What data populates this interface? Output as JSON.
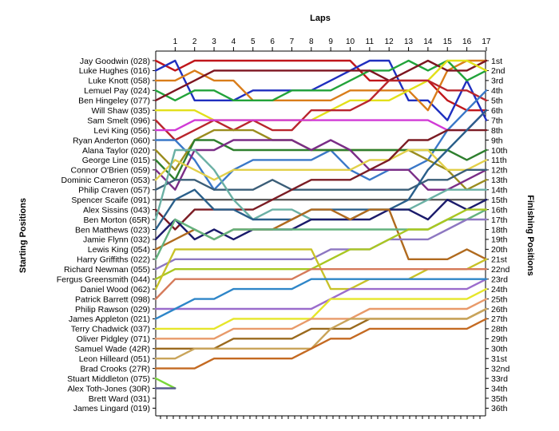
{
  "chart_data": {
    "type": "line",
    "title": "",
    "xlabel": "Laps",
    "ylabel_left": "Starting Positions",
    "ylabel_right": "Finishing Positions",
    "laps": [
      1,
      2,
      3,
      4,
      5,
      6,
      7,
      8,
      9,
      10,
      11,
      12,
      13,
      14,
      15,
      16,
      17
    ],
    "starting_grid": [
      "Jay Goodwin (028)",
      "Luke Hughes (016)",
      "Luke Knott (058)",
      "Lemuel Pay (024)",
      "Ben Hingeley (077)",
      "Will Shaw (035)",
      "Sam Smelt (096)",
      "Levi King (056)",
      "Ryan Anderton (060)",
      "Alana Taylor (020)",
      "George Line (015)",
      "Connor O'Brien (059)",
      "Dominic Cameron (053)",
      "Philip Craven (057)",
      "Spencer Scaife (091)",
      "Alex Sissins (043)",
      "Ben Morton (65R)",
      "Ben Matthews (023)",
      "Jamie Flynn (032)",
      "Lewis King (054)",
      "Harry Griffiths (022)",
      "Richard Newman (055)",
      "Fergus Greensmith (044)",
      "Daniel Wood (062)",
      "Patrick Barrett (098)",
      "Philip Rawson (029)",
      "James Appleton (021)",
      "Terry Chadwick (037)",
      "Oliver Pidgley (071)",
      "Samuel Wade (42R)",
      "Leon Hilleard (051)",
      "Brad Crooks (27R)",
      "Stuart Middleton (075)",
      "Alex Toth-Jones (30R)",
      "Brett Ward (031)",
      "James Lingard (019)"
    ],
    "finishing_positions": [
      "1st",
      "2nd",
      "3rd",
      "4th",
      "5th",
      "6th",
      "7th",
      "8th",
      "9th",
      "10th",
      "11th",
      "12th",
      "13th",
      "14th",
      "15th",
      "16th",
      "17th",
      "18th",
      "19th",
      "20th",
      "21st",
      "22nd",
      "23rd",
      "24th",
      "25th",
      "26th",
      "27th",
      "28th",
      "29th",
      "30th",
      "31st",
      "32nd",
      "33rd",
      "34th",
      "35th",
      "36th"
    ],
    "series": [
      {
        "color": "#c0161b",
        "start": 1,
        "positions": [
          2,
          1,
          1,
          1,
          1,
          1,
          1,
          1,
          1,
          1,
          3,
          3,
          3,
          3,
          5,
          6,
          6
        ]
      },
      {
        "color": "#1f2fbf",
        "start": 2,
        "positions": [
          1,
          5,
          5,
          5,
          4,
          4,
          4,
          4,
          3,
          2,
          1,
          1,
          5,
          5,
          7,
          3,
          7
        ]
      },
      {
        "color": "#d97d1a",
        "start": 3,
        "positions": [
          3,
          2,
          3,
          3,
          5,
          5,
          5,
          5,
          5,
          4,
          4,
          4,
          4,
          6,
          2,
          1,
          1
        ]
      },
      {
        "color": "#22a33a",
        "start": 4,
        "positions": [
          5,
          4,
          4,
          5,
          5,
          5,
          4,
          4,
          4,
          3,
          2,
          2,
          1,
          2,
          1,
          3,
          2
        ]
      },
      {
        "color": "#7d1520",
        "start": 5,
        "positions": [
          4,
          3,
          2,
          2,
          2,
          2,
          2,
          2,
          2,
          2,
          2,
          3,
          2,
          1,
          2,
          2,
          1
        ]
      },
      {
        "color": "#e2e01a",
        "start": 6,
        "positions": [
          6,
          6,
          7,
          7,
          7,
          7,
          7,
          7,
          6,
          5,
          5,
          5,
          4,
          3,
          1,
          1,
          2
        ]
      },
      {
        "color": "#b9252c",
        "start": 7,
        "positions": [
          9,
          8,
          7,
          8,
          7,
          8,
          8,
          6,
          6,
          6,
          5,
          3,
          3,
          3,
          4,
          4,
          5
        ]
      },
      {
        "color": "#d13ad6",
        "start": 8,
        "positions": [
          8,
          7,
          7,
          7,
          7,
          7,
          7,
          7,
          7,
          7,
          7,
          7,
          7,
          7,
          8,
          8,
          6
        ]
      },
      {
        "color": "#3a78c8",
        "start": 9,
        "positions": [
          9,
          11,
          14,
          12,
          11,
          11,
          11,
          11,
          10,
          12,
          13,
          12,
          12,
          11,
          8,
          6,
          4
        ]
      },
      {
        "color": "#9a8c1e",
        "start": 10,
        "positions": [
          12,
          9,
          8,
          8,
          8,
          9,
          9,
          10,
          10,
          10,
          10,
          10,
          10,
          11,
          12,
          14,
          13
        ]
      },
      {
        "color": "#2e7f2e",
        "start": 11,
        "positions": [
          13,
          9,
          9,
          10,
          10,
          10,
          10,
          10,
          10,
          10,
          10,
          10,
          10,
          10,
          10,
          11,
          10
        ]
      },
      {
        "color": "#7a2d86",
        "start": 12,
        "positions": [
          14,
          10,
          10,
          9,
          9,
          9,
          9,
          10,
          9,
          10,
          12,
          12,
          12,
          14,
          14,
          13,
          12
        ]
      },
      {
        "color": "#e2d04a",
        "start": 13,
        "positions": [
          11,
          12,
          13,
          12,
          12,
          12,
          12,
          12,
          12,
          12,
          11,
          11,
          10,
          10,
          12,
          12,
          11
        ]
      },
      {
        "color": "#3b5e78",
        "start": 14,
        "positions": [
          13,
          13,
          14,
          14,
          14,
          13,
          14,
          14,
          14,
          14,
          14,
          14,
          14,
          13,
          13,
          12,
          12
        ]
      },
      {
        "color": "#5d5d5d",
        "start": 15,
        "positions": [
          15,
          15,
          15,
          15,
          15,
          15,
          15,
          15,
          15,
          15,
          15,
          15,
          15,
          15,
          15,
          15,
          15
        ]
      },
      {
        "color": "#7b1c24",
        "start": 16,
        "positions": [
          18,
          16,
          16,
          16,
          16,
          15,
          14,
          13,
          13,
          13,
          12,
          11,
          9,
          9,
          8,
          8,
          8
        ]
      },
      {
        "color": "#6ab0a4",
        "start": 17,
        "positions": [
          10,
          10,
          12,
          15,
          17,
          16,
          16,
          17,
          17,
          17,
          16,
          16,
          16,
          15,
          14,
          14,
          14
        ]
      },
      {
        "color": "#2a5f8a",
        "start": 18,
        "positions": [
          15,
          14,
          16,
          16,
          17,
          17,
          17,
          16,
          16,
          16,
          16,
          16,
          15,
          12,
          10,
          8,
          6
        ]
      },
      {
        "color": "#1b1b6b",
        "start": 19,
        "positions": [
          17,
          19,
          18,
          19,
          18,
          18,
          18,
          17,
          17,
          17,
          17,
          16,
          16,
          17,
          15,
          16,
          15
        ]
      },
      {
        "color": "#b06a1e",
        "start": 20,
        "positions": [
          19,
          18,
          19,
          18,
          18,
          18,
          17,
          16,
          16,
          17,
          16,
          16,
          21,
          21,
          21,
          20,
          21
        ]
      },
      {
        "color": "#64b27e",
        "start": 21,
        "positions": [
          17,
          18,
          19,
          18,
          18,
          18,
          18,
          18,
          18,
          18,
          18,
          18,
          18,
          18,
          17,
          17,
          16
        ]
      },
      {
        "color": "#8d77c1",
        "start": 22,
        "positions": [
          21,
          21,
          21,
          21,
          21,
          21,
          21,
          21,
          20,
          20,
          20,
          19,
          19,
          19,
          18,
          17,
          17
        ]
      },
      {
        "color": "#a9c722",
        "start": 23,
        "positions": [
          22,
          22,
          22,
          22,
          22,
          22,
          22,
          22,
          21,
          20,
          20,
          19,
          18,
          18,
          17,
          16,
          16
        ]
      },
      {
        "color": "#c8c228",
        "start": 24,
        "positions": [
          20,
          20,
          20,
          20,
          20,
          20,
          20,
          20,
          24,
          24,
          23,
          23,
          23,
          22,
          22,
          22,
          21
        ]
      },
      {
        "color": "#d57a5a",
        "start": 25,
        "positions": [
          23,
          23,
          23,
          23,
          23,
          23,
          23,
          22,
          22,
          22,
          22,
          22,
          22,
          22,
          22,
          22,
          22
        ]
      },
      {
        "color": "#9b6ccc",
        "start": 26,
        "positions": [
          26,
          26,
          26,
          26,
          26,
          26,
          26,
          26,
          25,
          24,
          24,
          24,
          24,
          24,
          24,
          24,
          23
        ]
      },
      {
        "color": "#2e86c8",
        "start": 27,
        "positions": [
          26,
          25,
          25,
          24,
          24,
          24,
          24,
          23,
          23,
          23,
          23,
          23,
          23,
          23,
          23,
          23,
          23
        ]
      },
      {
        "color": "#e6e62a",
        "start": 28,
        "positions": [
          28,
          28,
          28,
          27,
          27,
          27,
          27,
          27,
          25,
          25,
          25,
          25,
          25,
          25,
          25,
          25,
          24
        ]
      },
      {
        "color": "#e89a6a",
        "start": 29,
        "positions": [
          29,
          29,
          29,
          28,
          28,
          28,
          28,
          27,
          27,
          27,
          26,
          26,
          26,
          26,
          26,
          26,
          25
        ]
      },
      {
        "color": "#9a6a1e",
        "start": 30,
        "positions": [
          30,
          30,
          30,
          29,
          29,
          29,
          29,
          28,
          28,
          28,
          27,
          27,
          27,
          27,
          27,
          27,
          26
        ]
      },
      {
        "color": "#c9a45a",
        "start": 31,
        "positions": [
          31,
          30,
          30,
          30,
          30,
          30,
          30,
          30,
          28,
          27,
          27,
          27,
          27,
          27,
          27,
          27,
          26
        ]
      },
      {
        "color": "#c46a22",
        "start": 32,
        "positions": [
          32,
          32,
          31,
          31,
          31,
          31,
          31,
          30,
          29,
          29,
          28,
          28,
          28,
          28,
          28,
          28,
          27
        ]
      },
      {
        "color": "#7ad63a",
        "start": 33,
        "positions": [
          34
        ]
      },
      {
        "color": "#5b5b8f",
        "start": 34,
        "positions": [
          34
        ]
      },
      {
        "color": "#808080",
        "start": 35,
        "positions": []
      },
      {
        "color": "#808080",
        "start": 36,
        "positions": []
      }
    ]
  }
}
